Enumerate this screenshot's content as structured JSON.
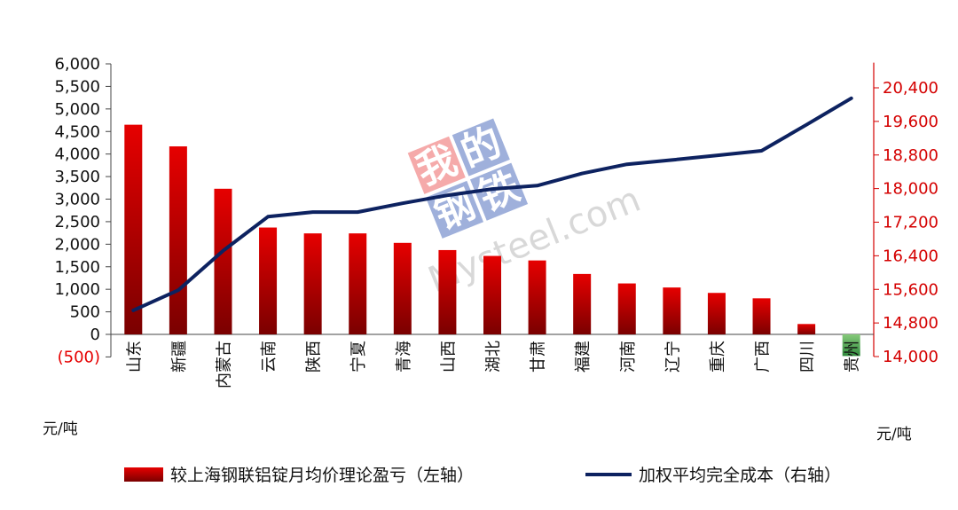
{
  "chart_data": {
    "type": "bar+line",
    "categories": [
      "山东",
      "新疆",
      "内蒙古",
      "云南",
      "陕西",
      "宁夏",
      "青海",
      "山西",
      "湖北",
      "甘肃",
      "福建",
      "河南",
      "辽宁",
      "重庆",
      "广西",
      "四川",
      "贵州"
    ],
    "series": [
      {
        "name": "较上海钢联铝锭月均价理论盈亏（左轴）",
        "kind": "bar",
        "axis": "left",
        "values": [
          4650,
          4170,
          3230,
          2370,
          2240,
          2240,
          2030,
          1870,
          1740,
          1640,
          1340,
          1130,
          1040,
          920,
          800,
          230,
          -480
        ]
      },
      {
        "name": "加权平均完全成本（右轴）",
        "kind": "line",
        "axis": "right",
        "values": [
          15100,
          15580,
          16520,
          17330,
          17440,
          17440,
          17650,
          17840,
          17990,
          18070,
          18360,
          18580,
          18680,
          18790,
          18900,
          19520,
          20150
        ]
      }
    ],
    "left_axis": {
      "unit": "元/吨",
      "ylim": [
        -500,
        6000
      ],
      "ticks": [
        -500,
        0,
        500,
        1000,
        1500,
        2000,
        2500,
        3000,
        3500,
        4000,
        4500,
        5000,
        5500,
        6000
      ],
      "tick_labels": [
        "(500)",
        "0",
        "500",
        "1,000",
        "1,500",
        "2,000",
        "2,500",
        "3,000",
        "3,500",
        "4,000",
        "4,500",
        "5,000",
        "5,500",
        "6,000"
      ]
    },
    "right_axis": {
      "unit": "元/吨",
      "ylim": [
        14000,
        21000
      ],
      "ticks": [
        14000,
        14800,
        15600,
        16400,
        17200,
        18000,
        18800,
        19600,
        20400
      ],
      "tick_labels": [
        "14,000",
        "14,800",
        "15,600",
        "16,400",
        "17,200",
        "18,000",
        "18,800",
        "19,600",
        "20,400"
      ]
    },
    "colors": {
      "bar_positive_top": "#e60000",
      "bar_positive_bottom": "#7a0000",
      "bar_negative_top": "#86c97a",
      "bar_negative_bottom": "#2f8a3c",
      "line": "#0d2260",
      "right_axis": "#d40000"
    },
    "legend": {
      "placement": "bottom",
      "bar_label": "较上海钢联铝锭月均价理论盈亏（左轴）",
      "line_label": "加权平均完全成本（右轴）"
    },
    "watermark": {
      "chars": [
        "我",
        "的",
        "钢",
        "铁"
      ],
      "text": "Mysteel.com"
    }
  }
}
